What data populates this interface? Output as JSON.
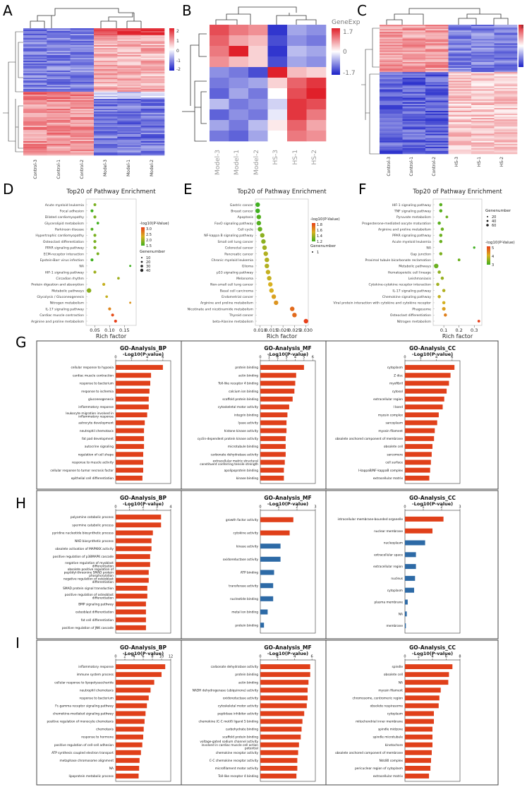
{
  "panel_letters": [
    "A",
    "B",
    "C",
    "D",
    "E",
    "F",
    "G",
    "H",
    "I"
  ],
  "heatmaps": [
    {
      "id": "A",
      "samples": [
        "Control-3",
        "Control-1",
        "Control-2",
        "Model-3",
        "Model-1",
        "Model-2"
      ],
      "scale": [
        "2",
        "1",
        "0",
        "-1",
        "-2"
      ]
    },
    {
      "id": "B",
      "samples": [
        "Model-3",
        "Model-1",
        "Model-2",
        "HS-3",
        "HS-1",
        "HS-2"
      ],
      "legend_title": "GeneExp",
      "scale": [
        "1.7",
        "0",
        "-1.7"
      ]
    },
    {
      "id": "C",
      "samples": [
        "Control-3",
        "Control-1",
        "Control-2",
        "HS-3",
        "HS-1",
        "HS-2"
      ],
      "scale": [
        "3",
        "2",
        "1",
        "0",
        "-1"
      ]
    }
  ],
  "colors": {
    "bar": "#e0401a",
    "bar_blue": "#2d6aa6",
    "heat_red": "#e0202a",
    "heat_blue": "#1a20c8"
  },
  "chart_data": [
    {
      "id": "D",
      "type": "scatter",
      "title": "Top20 of Pathway Enrichment",
      "xlabel": "Rich factor",
      "xticks": [
        "0.05",
        "0.10",
        "0.15"
      ],
      "xlim": [
        0.02,
        0.19
      ],
      "categories": [
        "Acute myeloid leukemia",
        "Focal adhesion",
        "Dilated cardiomyopathy",
        "Glycerolipid metabolism",
        "Parkinson disease",
        "Hypertrophic cardiomyopathy",
        "Osteoclast differentiation",
        "PPAR signaling pathway",
        "ECM-receptor interaction",
        "Epstein-Barr virus infection",
        "NA",
        "HIF-1 signaling pathway",
        "Circadian rhythm",
        "Protein digestion and absorption",
        "Metabolic pathways",
        "Glycolysis / Gluconeogenesis",
        "Nitrogen metabolism",
        "IL-17 signaling pathway",
        "Cardiac muscle contraction",
        "Arginine and proline metabolism"
      ],
      "x": [
        0.05,
        0.04,
        0.05,
        0.06,
        0.04,
        0.05,
        0.05,
        0.05,
        0.06,
        0.04,
        0.17,
        0.05,
        0.13,
        0.08,
        0.03,
        0.09,
        0.17,
        0.1,
        0.11,
        0.12
      ],
      "p": [
        1.8,
        1.5,
        1.8,
        1.5,
        1.6,
        1.8,
        1.8,
        1.8,
        1.8,
        1.5,
        1.5,
        2.0,
        2.0,
        2.2,
        1.9,
        2.2,
        2.5,
        2.6,
        3.0,
        3.1
      ],
      "size": [
        8,
        10,
        10,
        6,
        8,
        10,
        10,
        10,
        8,
        10,
        2,
        10,
        6,
        10,
        40,
        6,
        2,
        10,
        10,
        10
      ],
      "legend_title": "-log10(P-Value)",
      "legend_scale": [
        "3.0",
        "2.5",
        "2.0",
        "1.5"
      ],
      "size_title": "Genenumber",
      "size_scale": [
        "10",
        "20",
        "30",
        "40"
      ]
    },
    {
      "id": "E",
      "type": "scatter",
      "title": "Top20 of Pathway Enrichment",
      "xlabel": "Rich factor",
      "xticks": [
        "0.010",
        "0.015",
        "0.020",
        "0.025",
        "0.030"
      ],
      "xlim": [
        0.008,
        0.031
      ],
      "categories": [
        "Gastric cancer",
        "Breast cancer",
        "Apoptosis",
        "FoxO signaling pathway",
        "Cell cycle",
        "NF-kappa B signaling pathway",
        "Small cell lung cancer",
        "Colorectal cancer",
        "Pancreatic cancer",
        "Chronic myeloid leukemia",
        "Glioma",
        "p53 signaling pathway",
        "Melanoma",
        "Non-small cell lung cancer",
        "Basal cell carcinoma",
        "Endometrial cancer",
        "Arginine and proline metabolism",
        "Nicotinate and nicotinamide metabolism",
        "Thyroid cancer",
        "beta-Alanine metabolism"
      ],
      "x": [
        0.009,
        0.009,
        0.0095,
        0.0095,
        0.01,
        0.011,
        0.0115,
        0.012,
        0.0125,
        0.013,
        0.013,
        0.0135,
        0.014,
        0.0145,
        0.015,
        0.016,
        0.017,
        0.024,
        0.025,
        0.03
      ],
      "p": [
        1.1,
        1.1,
        1.15,
        1.15,
        1.2,
        1.3,
        1.3,
        1.35,
        1.4,
        1.4,
        1.4,
        1.45,
        1.45,
        1.5,
        1.5,
        1.55,
        1.6,
        1.75,
        1.75,
        1.9
      ],
      "size": [
        1,
        1,
        1,
        1,
        1,
        1,
        1,
        1,
        1,
        1,
        1,
        1,
        1,
        1,
        1,
        1,
        1,
        1,
        1,
        1
      ],
      "legend_title": "-log10(P-Value)",
      "legend_scale": [
        "1.8",
        "1.6",
        "1.4",
        "1.2"
      ],
      "size_title": "Genenumber",
      "size_scale": [
        "1"
      ]
    },
    {
      "id": "F",
      "type": "scatter",
      "title": "Top20 of Pathway Enrichment",
      "xlabel": "Rich factor",
      "xticks": [
        "0.1",
        "0.2",
        "0.3"
      ],
      "xlim": [
        0.03,
        0.35
      ],
      "categories": [
        "HIF-1 signaling pathway",
        "TNF signaling pathway",
        "Pyruvate metabolism",
        "Progesterone-mediated oocyte maturation",
        "Arginine and proline metabolism",
        "PPAR signaling pathway",
        "Acute myeloid leukemia",
        "NA",
        "Gap junction",
        "Proximal tubule bicarbonate reclamation",
        "Metabolic pathways",
        "Hematopoietic cell lineage",
        "Leishmaniasis",
        "Cytokine-cytokine receptor interaction",
        "IL-17 signaling pathway",
        "Chemokine signaling pathway",
        "Viral protein interaction with cytokine and cytokine receptor",
        "Phagosome",
        "Osteoclast differentiation",
        "Nitrogen metabolism"
      ],
      "x": [
        0.08,
        0.08,
        0.12,
        0.07,
        0.09,
        0.08,
        0.08,
        0.3,
        0.08,
        0.2,
        0.05,
        0.07,
        0.09,
        0.06,
        0.1,
        0.07,
        0.1,
        0.1,
        0.11,
        0.33
      ],
      "p": [
        1.8,
        1.8,
        2.0,
        1.8,
        2.0,
        2.0,
        2.0,
        1.5,
        2.2,
        2.0,
        2.0,
        2.4,
        2.5,
        2.6,
        2.8,
        3.0,
        3.2,
        3.5,
        4.0,
        5.0
      ],
      "size": [
        20,
        20,
        10,
        20,
        20,
        20,
        20,
        5,
        20,
        10,
        60,
        20,
        20,
        20,
        20,
        20,
        20,
        30,
        20,
        10
      ],
      "legend_title": "-log10(P-Value)",
      "legend_scale": [
        "5",
        "4",
        "3"
      ],
      "size_title": "Genenumber",
      "size_scale": [
        "20",
        "40",
        "60"
      ]
    },
    {
      "id": "G-BP",
      "type": "bar",
      "title": "GO-Analysis_BP",
      "xlabel": "-Log10(P-value)",
      "xticks": [
        "0",
        "2",
        "4",
        "6"
      ],
      "xlim": [
        0,
        7
      ],
      "categories": [
        "cellular response to hypoxia",
        "cardiac muscle contraction",
        "response to bacterium",
        "response to ischemia",
        "gluconeogenesis",
        "inflammatory response",
        "leukocyte migration involved in inflammatory response",
        "astrocyte development",
        "neutrophil chemotaxis",
        "fat pad development",
        "autocrine signaling",
        "regulation of cell shape",
        "response to muscle activity",
        "cellular response to tumor necrosis factor",
        "epithelial cell differentiation"
      ],
      "values": [
        6.0,
        4.5,
        4.4,
        4.3,
        4.2,
        4.2,
        4.0,
        3.7,
        3.6,
        3.6,
        3.6,
        3.5,
        3.5,
        3.5,
        3.4
      ]
    },
    {
      "id": "G-MF",
      "type": "bar",
      "title": "GO-Analysis_MF",
      "xlabel": "-Log10(P-value)",
      "xticks": [
        "0",
        "1",
        "2",
        "3",
        "4",
        "5",
        "6"
      ],
      "xlim": [
        0,
        6.3
      ],
      "categories": [
        "protein binding",
        "actin binding",
        "Toll-like receptor 4 binding",
        "calcium ion binding",
        "scaffold protein binding",
        "cytoskeletal motor activity",
        "integrin binding",
        "lyase activity",
        "histone kinase activity",
        "cyclin-dependent protein kinase activity",
        "microtubule binding",
        "carbonate dehydratase activity",
        "extracellular matrix structural constituent conferring tensile strength",
        "apolipoprotein binding",
        "kinase binding"
      ],
      "values": [
        5.0,
        4.1,
        4.0,
        3.9,
        3.7,
        3.3,
        3.1,
        3.0,
        3.0,
        2.9,
        2.9,
        2.9,
        2.8,
        2.7,
        2.7
      ]
    },
    {
      "id": "G-CC",
      "type": "bar",
      "title": "GO-Analysis_CC",
      "xlabel": "-Log10(P-value)",
      "xticks": [
        "0",
        "2",
        "4",
        "6"
      ],
      "xlim": [
        0,
        7
      ],
      "categories": [
        "cytoplasm",
        "Z disc",
        "myofibril",
        "cytosol",
        "extracellular region",
        "I band",
        "myosin complex",
        "sarcoplasm",
        "myosin filament",
        "obsolete anchored component of membrane",
        "obsolete cell",
        "sarcomere",
        "cell surface",
        "I-kappaB/NF-kappaB complex",
        "extracellular matrix"
      ],
      "values": [
        6.3,
        5.8,
        5.6,
        5.3,
        5.0,
        4.8,
        4.3,
        4.1,
        3.8,
        3.7,
        3.5,
        3.4,
        3.3,
        3.2,
        3.1
      ]
    },
    {
      "id": "H-BP",
      "type": "bar",
      "title": "GO-Analysis_BP",
      "xlabel": "-Log10(P-value)",
      "xticks": [
        "0",
        "1",
        "2",
        "3",
        "4"
      ],
      "xlim": [
        0,
        4
      ],
      "categories": [
        "polyamine catabolic process",
        "spermine catabolic process",
        "pyridine nucleotide biosynthetic process",
        "NAD biosynthetic process",
        "obsolete activation of MAPKKK activity",
        "positive regulation of p38MAPK cascade",
        "negative regulation of myoblast differentiation",
        "obsolete positive regulation of peptidyl-threonine SMAD protein phosphorylation",
        "negative regulation of osteoblast differentiation",
        "SMAD protein signal transduction",
        "positive regulation of osteoblast differentiation",
        "BMP signaling pathway",
        "osteoblast differentiation",
        "fat cell differentiation",
        "positive regulation of JNK cascade"
      ],
      "values": [
        3.3,
        3.3,
        2.7,
        2.6,
        2.6,
        2.5,
        2.5,
        2.4,
        2.4,
        2.3,
        2.3,
        2.2,
        2.2,
        2.2,
        2.2
      ]
    },
    {
      "id": "H-MF",
      "type": "bar",
      "title": "GO-Analysis_MF",
      "xlabel": "-Log10(P-value)",
      "xticks": [
        "0",
        "1",
        "2",
        "3"
      ],
      "xlim": [
        0,
        3
      ],
      "categories": [
        "growth factor activity",
        "cytokine activity",
        "kinase activity",
        "oxidoreductase activity",
        "ATP binding",
        "transferase activity",
        "nucleotide binding",
        "metal ion binding",
        "protein binding"
      ],
      "values": [
        1.8,
        1.6,
        1.1,
        1.1,
        0.75,
        0.7,
        0.7,
        0.4,
        0.2
      ],
      "bar_colors": [
        "red",
        "red",
        "blue",
        "blue",
        "blue",
        "blue",
        "blue",
        "blue",
        "blue"
      ]
    },
    {
      "id": "H-CC",
      "type": "bar",
      "title": "GO-Analysis_CC",
      "xlabel": "-Log10(P-value)",
      "xticks": [
        "0",
        "1",
        "2",
        "3"
      ],
      "xlim": [
        0,
        3
      ],
      "categories": [
        "intracellular membrane-bounded organelle",
        "nuclear membrane",
        "nucleoplasm",
        "extracellular space",
        "extracellular region",
        "nucleus",
        "cytoplasm",
        "plasma membrane",
        "NA",
        "membrane"
      ],
      "values": [
        2.1,
        1.5,
        1.1,
        0.6,
        0.6,
        0.55,
        0.5,
        0.15,
        0.1,
        0.05
      ],
      "bar_colors": [
        "red",
        "red",
        "blue",
        "blue",
        "blue",
        "blue",
        "blue",
        "blue",
        "blue",
        "blue"
      ]
    },
    {
      "id": "I-BP",
      "type": "bar",
      "title": "GO-Analysis_BP",
      "xlabel": "-Log10(P-value)",
      "xticks": [
        "0",
        "2",
        "4",
        "6",
        "8",
        "10",
        "12"
      ],
      "xlim": [
        0,
        12
      ],
      "categories": [
        "inflammatory response",
        "immune system process",
        "cellular response to lipopolysaccharide",
        "neutrophil chemotaxis",
        "response to bacterium",
        "Fc-gamma receptor signaling pathway",
        "chemokine-mediated signaling pathway",
        "positive regulation of monocyte chemotaxis",
        "chemotaxis",
        "response to hormone",
        "positive regulation of cell-cell adhesion",
        "ATP synthesis coupled electron transport",
        "metaphase chromosome alignment",
        "NA",
        "lipoprotein metabolic process"
      ],
      "values": [
        10.8,
        10.0,
        8.4,
        7.6,
        7.2,
        6.8,
        6.5,
        6.3,
        6.1,
        6.0,
        5.8,
        5.5,
        5.2,
        5.1,
        5.0
      ]
    },
    {
      "id": "I-MF",
      "type": "bar",
      "title": "GO-Analysis_MF",
      "xlabel": "-Log10(P-value)",
      "xticks": [
        "0",
        "2",
        "4",
        "6"
      ],
      "xlim": [
        0,
        6.4
      ],
      "categories": [
        "carbonate dehydratase activity",
        "protein binding",
        "actin binding",
        "NADH dehydrogenase (ubiquinone) activity",
        "oxidoreductase activity",
        "cytoskeletal motor activity",
        "peptidase inhibitor activity",
        "chemokine (C-C motif) ligand 5 binding",
        "carbohydrate binding",
        "scaffold protein binding",
        "voltage-gated sodium channel activity involved in cardiac muscle cell action potential",
        "chemokine receptor activity",
        "C-C chemokine receptor activity",
        "microfilament motor activity",
        "Toll-like receptor 4 binding"
      ],
      "values": [
        5.8,
        5.8,
        5.6,
        5.5,
        5.5,
        5.4,
        5.1,
        4.9,
        4.8,
        4.7,
        4.5,
        4.4,
        4.3,
        4.3,
        4.2
      ]
    },
    {
      "id": "I-CC",
      "type": "bar",
      "title": "GO-Analysis_CC",
      "xlabel": "-Log10(P-value)",
      "xticks": [
        "0",
        "2",
        "4",
        "6",
        "8"
      ],
      "xlim": [
        0,
        8
      ],
      "categories": [
        "spindle",
        "obsolete cell",
        "NA",
        "myosin filament",
        "chromosome, centromeric region",
        "obsolete respirasome",
        "cytoplasm",
        "mitochondrial inner membrane",
        "spindle midzone",
        "spindle microtubule",
        "kinetochore",
        "obsolete anchored component of membrane",
        "Ndc80 complex",
        "pericuclear region of cytoplasm",
        "extracellular matrix"
      ],
      "values": [
        6.9,
        6.4,
        6.3,
        5.2,
        5.0,
        4.9,
        4.2,
        4.2,
        4.0,
        4.0,
        4.0,
        3.9,
        3.8,
        3.7,
        3.5
      ]
    }
  ]
}
